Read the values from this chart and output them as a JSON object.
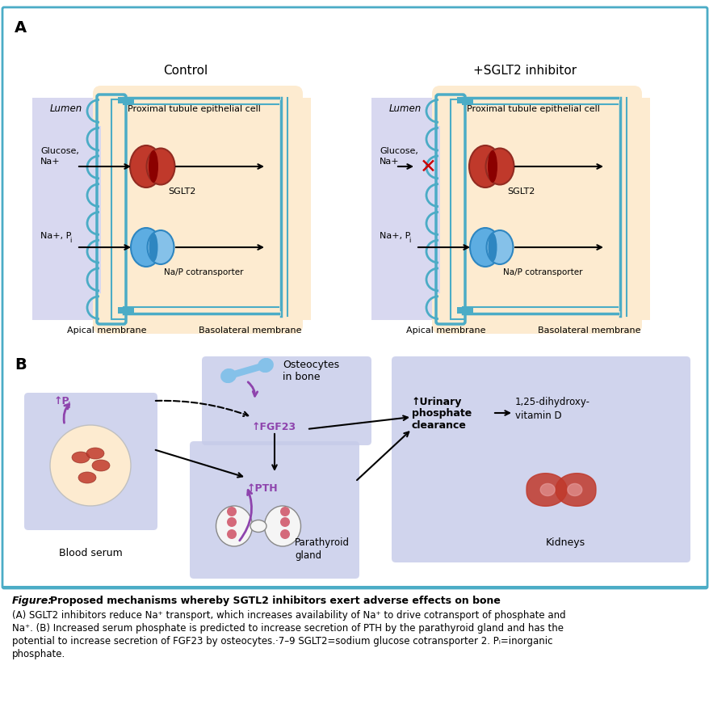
{
  "fig_width": 8.79,
  "fig_height": 8.87,
  "bg_color": "#ffffff",
  "border_color": "#4BACC6",
  "panel_A_title_control": "Control",
  "panel_A_title_sglt2": "+SGLT2 inhibitor",
  "cell_bg": "#FDEBD0",
  "lumen_bg": "#D6E4F7",
  "membrane_color": "#4BACC6",
  "sglt2_color_red": "#C0392B",
  "transporter_color_cyan": "#5DADE2",
  "caption_title": "Figure: Proposed mechanisms whereby SGTL2 inhibitors exert adverse effects on bone",
  "caption_line2": "(A) SGLT2 inhibitors reduce Na⁺ transport, which increases availability of Na⁺ to drive cotransport of phosphate and",
  "caption_line3": "Na⁺. (B) Increased serum phosphate is predicted to increase secretion of PTH by the parathyroid gland and has the",
  "caption_line4": "potential to increase secretion of FGF23 by osteocytes.·7–9 SGLT2=sodium glucose cotransporter 2. Pᵢ=inorganic",
  "caption_line5": "phosphate.",
  "box_color_b": "#C5CAE9",
  "purple_color": "#8E44AD",
  "arrow_color": "#222222",
  "red_x_color": "#CC0000"
}
